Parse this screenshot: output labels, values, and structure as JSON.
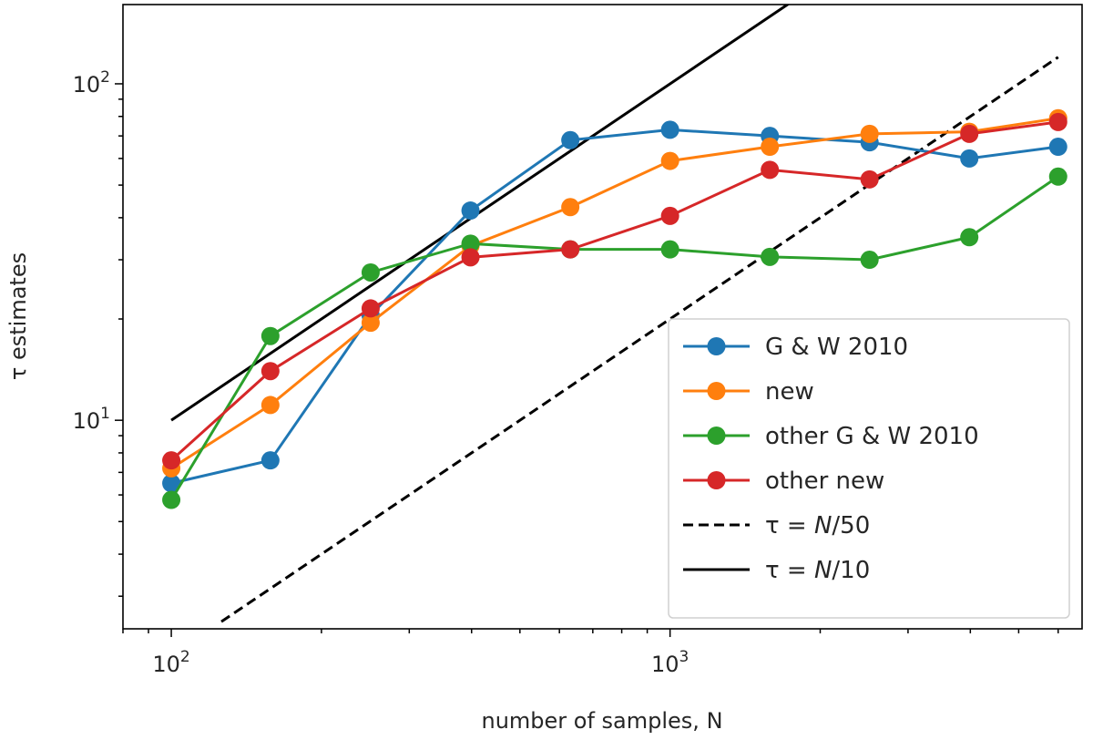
{
  "chart_data": {
    "type": "line",
    "title": "",
    "xlabel": "number of samples, N",
    "ylabel": "τ estimates",
    "xscale": "log",
    "yscale": "log",
    "xlim": [
      80,
      6700
    ],
    "ylim": [
      2.4,
      172
    ],
    "x_ticks": [
      {
        "value": 100,
        "base": "10",
        "exp": "2"
      },
      {
        "value": 1000,
        "base": "10",
        "exp": "3"
      }
    ],
    "y_ticks": [
      {
        "value": 10,
        "base": "10",
        "exp": "1"
      },
      {
        "value": 100,
        "base": "10",
        "exp": "2"
      }
    ],
    "x": [
      100,
      158,
      251,
      398,
      631,
      1000,
      1585,
      2512,
      3981,
      6000
    ],
    "series": [
      {
        "name": "G & W 2010",
        "color": "#1f77b4",
        "style": "marker-line",
        "values": [
          6.5,
          7.6,
          20.5,
          42,
          68,
          73,
          70,
          67,
          60,
          65
        ]
      },
      {
        "name": "new",
        "color": "#ff7f0e",
        "style": "marker-line",
        "values": [
          7.2,
          11.1,
          19.5,
          33,
          43,
          59,
          65,
          71,
          72,
          79
        ]
      },
      {
        "name": "other G & W 2010",
        "color": "#2ca02c",
        "style": "marker-line",
        "values": [
          5.8,
          17.8,
          27.5,
          33.5,
          32.2,
          32.2,
          30.6,
          30,
          35,
          53
        ]
      },
      {
        "name": "other new",
        "color": "#d62728",
        "style": "marker-line",
        "values": [
          7.6,
          14,
          21.5,
          30.5,
          32.2,
          40.5,
          55.5,
          52,
          71,
          77
        ]
      }
    ],
    "reference_lines": [
      {
        "name": "τ = N/50",
        "label_prefix": "τ = ",
        "label_var": "N",
        "label_suffix": "/50",
        "divisor": 50,
        "color": "#000000",
        "style": "dashed",
        "x_range": [
          126,
          6000
        ]
      },
      {
        "name": "τ = N/10",
        "label_prefix": "τ = ",
        "label_var": "N",
        "label_suffix": "/10",
        "divisor": 10,
        "color": "#000000",
        "style": "solid",
        "x_range": [
          100,
          1900
        ]
      }
    ],
    "legend": {
      "position": "lower-right"
    }
  }
}
